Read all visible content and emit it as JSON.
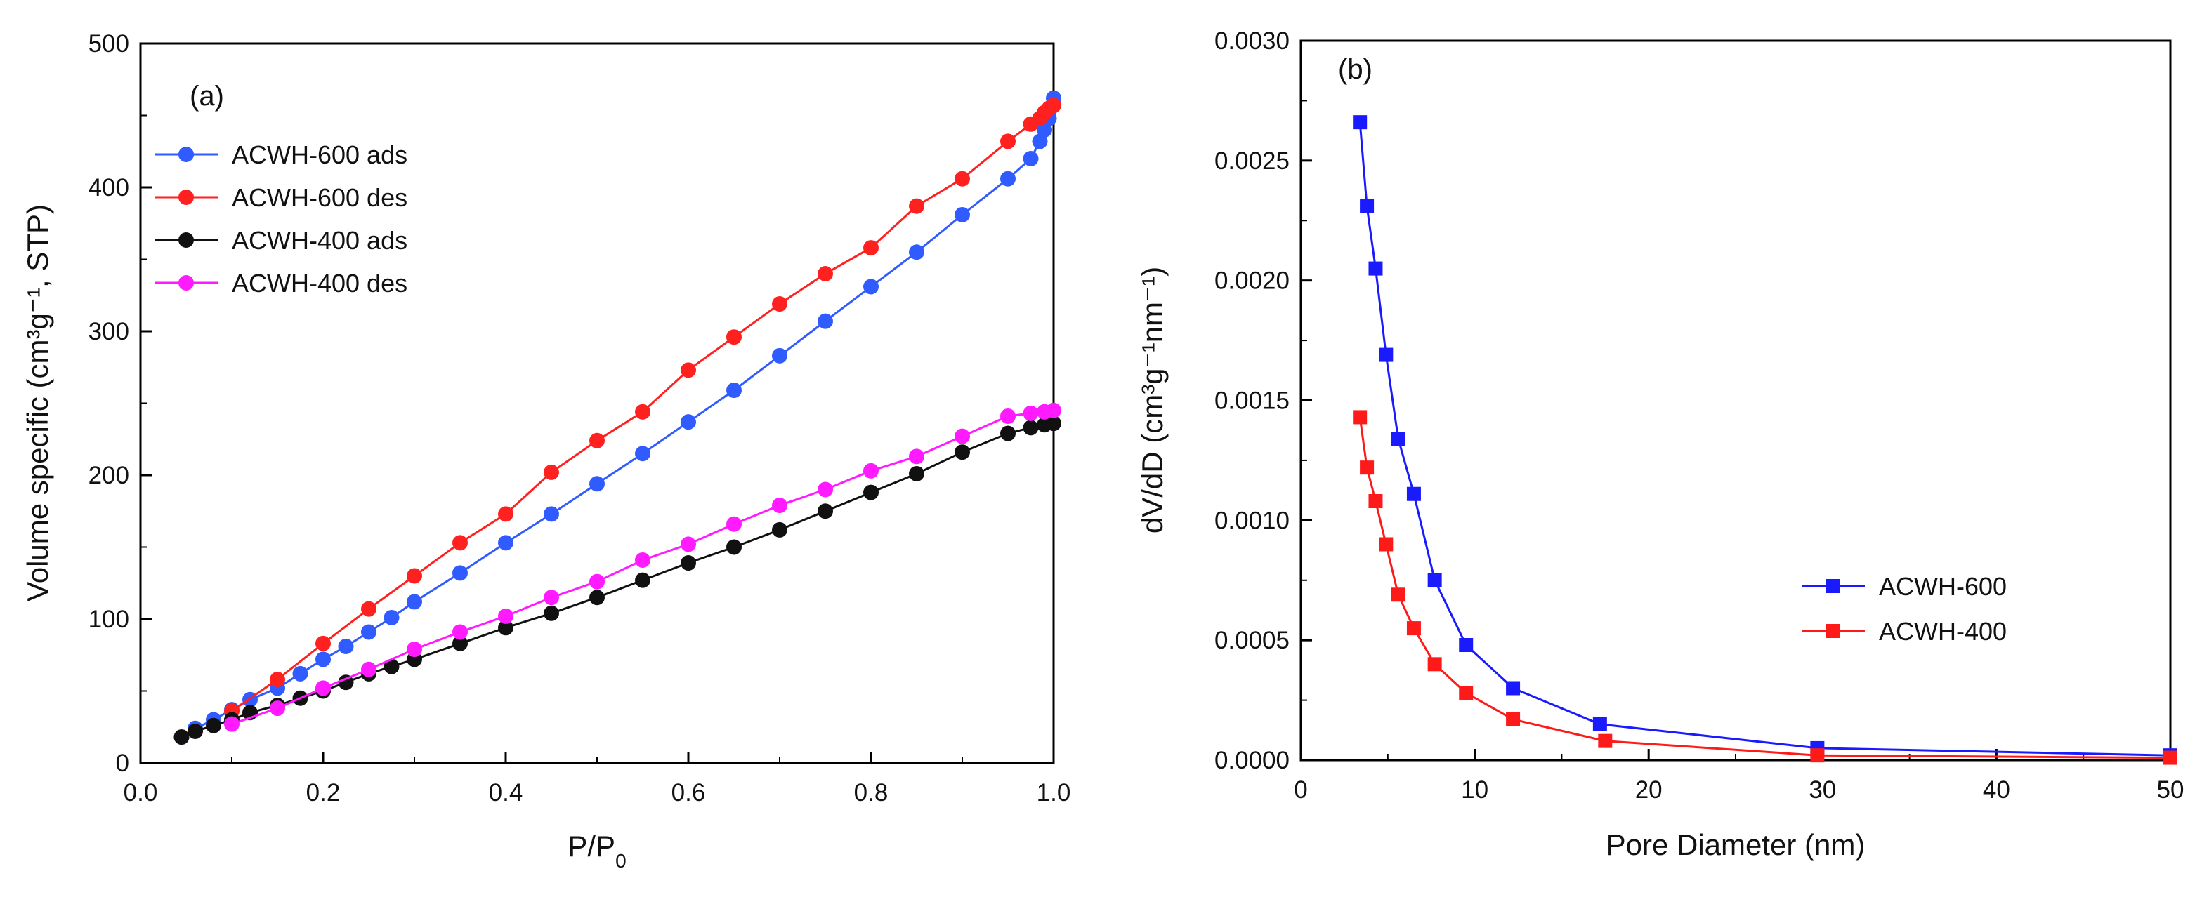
{
  "chart_data": [
    {
      "type": "line",
      "panel_label": "(a)",
      "xlabel": "P/P",
      "xlabel_sub": "0",
      "ylabel": "Volume specific (cm³g⁻¹, STP)",
      "xlim": [
        0.0,
        1.0
      ],
      "ylim": [
        0,
        500
      ],
      "xticks": [
        "0.0",
        "0.2",
        "0.4",
        "0.6",
        "0.8",
        "1.0"
      ],
      "xtick_values": [
        0.0,
        0.2,
        0.4,
        0.6,
        0.8,
        1.0
      ],
      "yticks": [
        "0",
        "100",
        "200",
        "300",
        "400",
        "500"
      ],
      "ytick_values": [
        0,
        100,
        200,
        300,
        400,
        500
      ],
      "legend_position": "top-left",
      "series": [
        {
          "name": "ACWH-600 ads",
          "color": "#2f5bff",
          "marker": "circle",
          "points": [
            [
              0.045,
              18
            ],
            [
              0.06,
              24
            ],
            [
              0.08,
              30
            ],
            [
              0.1,
              37
            ],
            [
              0.12,
              44
            ],
            [
              0.15,
              52
            ],
            [
              0.175,
              62
            ],
            [
              0.2,
              72
            ],
            [
              0.225,
              81
            ],
            [
              0.25,
              91
            ],
            [
              0.275,
              101
            ],
            [
              0.3,
              112
            ],
            [
              0.35,
              132
            ],
            [
              0.4,
              153
            ],
            [
              0.45,
              173
            ],
            [
              0.5,
              194
            ],
            [
              0.55,
              215
            ],
            [
              0.6,
              237
            ],
            [
              0.65,
              259
            ],
            [
              0.7,
              283
            ],
            [
              0.75,
              307
            ],
            [
              0.8,
              331
            ],
            [
              0.85,
              355
            ],
            [
              0.9,
              381
            ],
            [
              0.95,
              406
            ],
            [
              0.975,
              420
            ],
            [
              0.985,
              432
            ],
            [
              0.99,
              440
            ],
            [
              0.995,
              448
            ],
            [
              0.998,
              456
            ],
            [
              1.0,
              462
            ]
          ]
        },
        {
          "name": "ACWH-600 des",
          "color": "#ff2020",
          "marker": "circle",
          "points": [
            [
              0.1,
              36
            ],
            [
              0.15,
              58
            ],
            [
              0.2,
              83
            ],
            [
              0.25,
              107
            ],
            [
              0.3,
              130
            ],
            [
              0.35,
              153
            ],
            [
              0.4,
              173
            ],
            [
              0.45,
              202
            ],
            [
              0.5,
              224
            ],
            [
              0.55,
              244
            ],
            [
              0.6,
              273
            ],
            [
              0.65,
              296
            ],
            [
              0.7,
              319
            ],
            [
              0.75,
              340
            ],
            [
              0.8,
              358
            ],
            [
              0.85,
              387
            ],
            [
              0.9,
              406
            ],
            [
              0.95,
              432
            ],
            [
              0.975,
              444
            ],
            [
              0.985,
              448
            ],
            [
              0.99,
              452
            ],
            [
              0.995,
              455
            ],
            [
              1.0,
              457
            ]
          ]
        },
        {
          "name": "ACWH-400 ads",
          "color": "#111111",
          "marker": "circle",
          "points": [
            [
              0.045,
              18
            ],
            [
              0.06,
              22
            ],
            [
              0.08,
              26
            ],
            [
              0.1,
              30
            ],
            [
              0.12,
              35
            ],
            [
              0.15,
              40
            ],
            [
              0.175,
              45
            ],
            [
              0.2,
              50
            ],
            [
              0.225,
              56
            ],
            [
              0.25,
              62
            ],
            [
              0.275,
              67
            ],
            [
              0.3,
              72
            ],
            [
              0.35,
              83
            ],
            [
              0.4,
              94
            ],
            [
              0.45,
              104
            ],
            [
              0.5,
              115
            ],
            [
              0.55,
              127
            ],
            [
              0.6,
              139
            ],
            [
              0.65,
              150
            ],
            [
              0.7,
              162
            ],
            [
              0.75,
              175
            ],
            [
              0.8,
              188
            ],
            [
              0.85,
              201
            ],
            [
              0.9,
              216
            ],
            [
              0.95,
              229
            ],
            [
              0.975,
              233
            ],
            [
              0.99,
              235
            ],
            [
              1.0,
              236
            ]
          ]
        },
        {
          "name": "ACWH-400 des",
          "color": "#ff1aff",
          "marker": "circle",
          "points": [
            [
              0.1,
              27
            ],
            [
              0.15,
              38
            ],
            [
              0.2,
              52
            ],
            [
              0.25,
              65
            ],
            [
              0.3,
              79
            ],
            [
              0.35,
              91
            ],
            [
              0.4,
              102
            ],
            [
              0.45,
              115
            ],
            [
              0.5,
              126
            ],
            [
              0.55,
              141
            ],
            [
              0.6,
              152
            ],
            [
              0.65,
              166
            ],
            [
              0.7,
              179
            ],
            [
              0.75,
              190
            ],
            [
              0.8,
              203
            ],
            [
              0.85,
              213
            ],
            [
              0.9,
              227
            ],
            [
              0.95,
              241
            ],
            [
              0.975,
              243
            ],
            [
              0.99,
              244
            ],
            [
              1.0,
              245
            ]
          ]
        }
      ]
    },
    {
      "type": "line",
      "panel_label": "(b)",
      "xlabel": "Pore Diameter (nm)",
      "ylabel": "dV/dD (cm³g⁻¹nm⁻¹)",
      "xlim": [
        0,
        50
      ],
      "ylim": [
        0.0,
        0.003
      ],
      "xticks": [
        "0",
        "10",
        "20",
        "30",
        "40",
        "50"
      ],
      "xtick_values": [
        0,
        10,
        20,
        30,
        40,
        50
      ],
      "yticks": [
        "0.0000",
        "0.0005",
        "0.0010",
        "0.0015",
        "0.0020",
        "0.0025",
        "0.0030"
      ],
      "ytick_values": [
        0.0,
        0.0005,
        0.001,
        0.0015,
        0.002,
        0.0025,
        0.003
      ],
      "legend_position": "right-middle",
      "series": [
        {
          "name": "ACWH-600",
          "color": "#1a1aff",
          "marker": "square",
          "points": [
            [
              3.4,
              0.00266
            ],
            [
              3.8,
              0.00231
            ],
            [
              4.3,
              0.00205
            ],
            [
              4.9,
              0.00169
            ],
            [
              5.6,
              0.00134
            ],
            [
              6.5,
              0.00111
            ],
            [
              7.7,
              0.00075
            ],
            [
              9.5,
              0.00048
            ],
            [
              12.2,
              0.0003
            ],
            [
              17.2,
              0.00015
            ],
            [
              29.7,
              5e-05
            ],
            [
              50,
              2e-05
            ]
          ]
        },
        {
          "name": "ACWH-400",
          "color": "#ff1a1a",
          "marker": "square",
          "points": [
            [
              3.4,
              0.00143
            ],
            [
              3.8,
              0.00122
            ],
            [
              4.3,
              0.00108
            ],
            [
              4.9,
              0.0009
            ],
            [
              5.6,
              0.00069
            ],
            [
              6.5,
              0.00055
            ],
            [
              7.7,
              0.0004
            ],
            [
              9.5,
              0.00028
            ],
            [
              12.2,
              0.00017
            ],
            [
              17.5,
              8e-05
            ],
            [
              29.7,
              2e-05
            ],
            [
              50,
              1e-05
            ]
          ]
        }
      ]
    }
  ]
}
